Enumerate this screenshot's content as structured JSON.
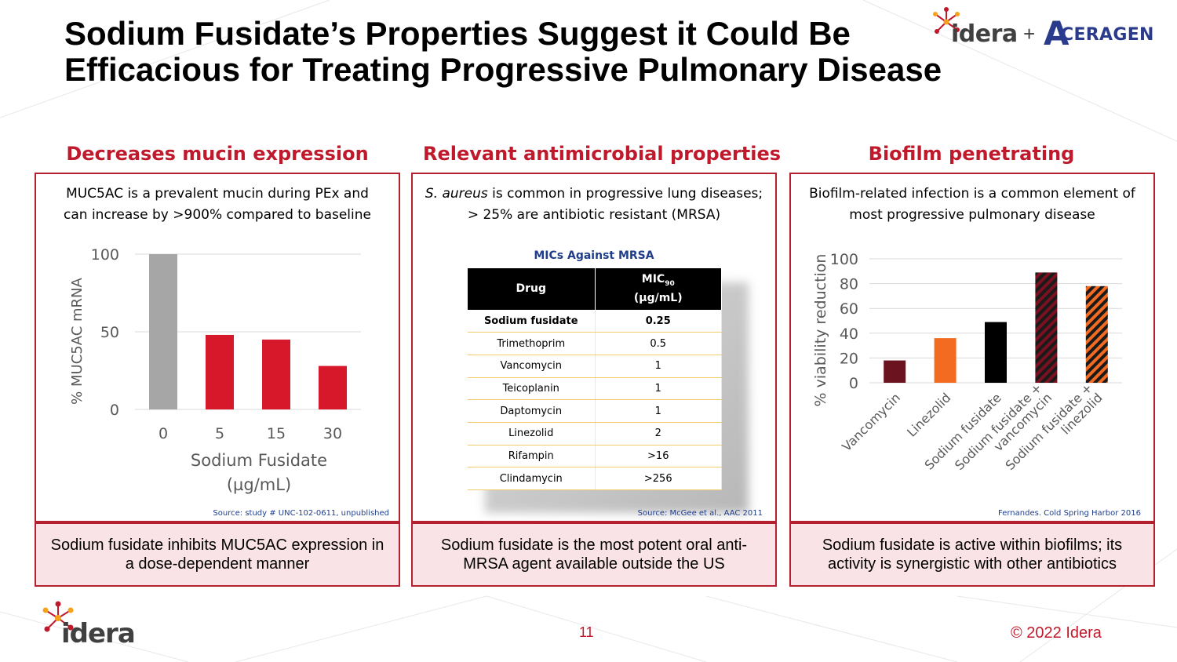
{
  "title": "Sodium Fusidate’s Properties Suggest it Could Be Efficacious for Treating Progressive Pulmonary Disease",
  "logos": {
    "idera": "idera",
    "plus": "+",
    "aceragen_a": "A",
    "aceragen_rest": "CERAGEN"
  },
  "panels": [
    {
      "heading": "Decreases mucin expression",
      "description": "MUC5AC is a prevalent mucin during PEx and can increase by >900% compared to baseline",
      "source": "Source: study # UNC-102-0611, unpublished",
      "summary": "Sodium fusidate inhibits MUC5AC expression in a dose-dependent manner"
    },
    {
      "heading": "Relevant antimicrobial properties",
      "description_italic": "S. aureus",
      "description_rest": " is common in progressive lung diseases; > 25% are antibiotic resistant (MRSA)",
      "source": "Source: McGee et al., AAC 2011",
      "summary": "Sodium fusidate is the most potent oral anti-MRSA agent available outside the US"
    },
    {
      "heading": "Biofilm penetrating",
      "description": "Biofilm-related infection is a common element of most progressive pulmonary disease",
      "source": "Fernandes. Cold Spring Harbor 2016",
      "summary": "Sodium fusidate is active within biofilms; its activity is synergistic with other antibiotics"
    }
  ],
  "mic_table": {
    "title": "MICs Against MRSA",
    "header_drug": "Drug",
    "header_mic_main": "MIC",
    "header_mic_sub": "90",
    "header_mic_unit": "(µg/mL)",
    "rows": [
      {
        "drug": "Sodium fusidate",
        "mic": "0.25",
        "bold": true
      },
      {
        "drug": "Trimethoprim",
        "mic": "0.5",
        "bold": false
      },
      {
        "drug": "Vancomycin",
        "mic": "1",
        "bold": false
      },
      {
        "drug": "Teicoplanin",
        "mic": "1",
        "bold": false
      },
      {
        "drug": "Daptomycin",
        "mic": "1",
        "bold": false
      },
      {
        "drug": "Linezolid",
        "mic": "2",
        "bold": false
      },
      {
        "drug": "Rifampin",
        "mic": ">16",
        "bold": false
      },
      {
        "drug": "Clindamycin",
        "mic": ">256",
        "bold": false
      }
    ]
  },
  "chart_data": [
    {
      "type": "bar",
      "categories": [
        "0",
        "5",
        "15",
        "30"
      ],
      "values": [
        100,
        48,
        45,
        28
      ],
      "colors": [
        "#a6a6a6",
        "#d7182a",
        "#d7182a",
        "#d7182a"
      ],
      "title": "",
      "xlabel": "Sodium Fusidate (µg/mL)",
      "xlabel_lines": [
        "Sodium Fusidate",
        "(µg/mL)"
      ],
      "ylabel": "% MUC5AC mRNA",
      "ylim": [
        0,
        100
      ],
      "yticks": [
        0,
        50,
        100
      ],
      "grid": true
    },
    {
      "type": "bar",
      "categories": [
        "Vancomycin",
        "Linezolid",
        "Sodium fusidate",
        "Sodium fusidate + vancomycin",
        "Sodium fusidate + linezolid"
      ],
      "category_lines": [
        [
          "Vancomycin"
        ],
        [
          "Linezolid"
        ],
        [
          "Sodium fusidate"
        ],
        [
          "Sodium fusidate +",
          "vancomycin"
        ],
        [
          "Sodium fusidate +",
          "linezolid"
        ]
      ],
      "values": [
        18,
        36,
        49,
        89,
        78
      ],
      "colors": [
        "#6b1420",
        "#f26b21",
        "#000000",
        "#7a1020",
        "#f26b21"
      ],
      "patterns": [
        "solid",
        "solid",
        "solid",
        "hatch",
        "hatch"
      ],
      "title": "",
      "xlabel": "",
      "ylabel": "% viability reduction",
      "ylim": [
        0,
        100
      ],
      "yticks": [
        0,
        20,
        40,
        60,
        80,
        100
      ],
      "grid": true
    }
  ],
  "footer": {
    "logo": "idera",
    "page_number": "11",
    "copyright": "© 2022 Idera"
  }
}
